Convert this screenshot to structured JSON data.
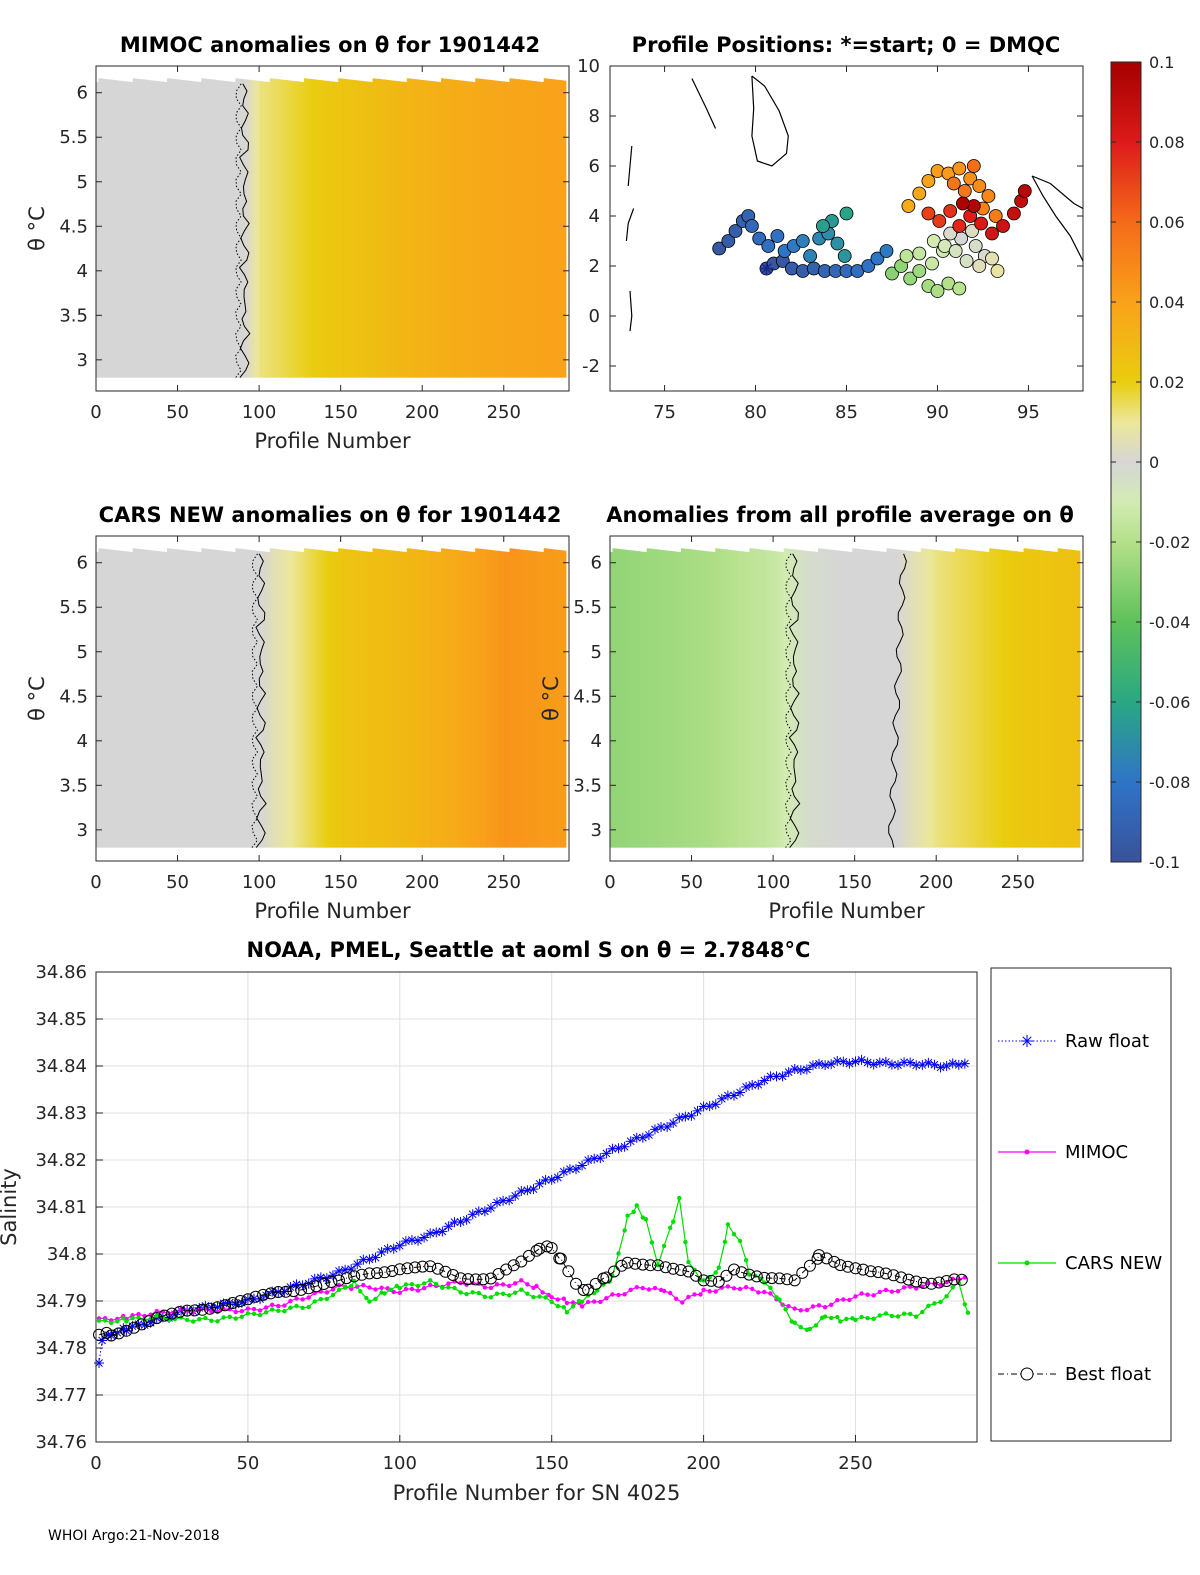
{
  "footer": "WHOI Argo:21-Nov-2018",
  "theta_symbol": "θ",
  "colorbar": {
    "range": [
      -0.1,
      0.1
    ],
    "tick_labels": [
      "0.1",
      "0.08",
      "0.06",
      "0.04",
      "0.02",
      "0",
      "-0.02",
      "-0.04",
      "-0.06",
      "-0.08",
      "-0.1"
    ],
    "tick_values": [
      0.1,
      0.08,
      0.06,
      0.04,
      0.02,
      0,
      -0.02,
      -0.04,
      -0.06,
      -0.08,
      -0.1
    ]
  },
  "chart_data": [
    {
      "id": "mimoc",
      "type": "heatmap",
      "title": "MIMOC anomalies on θ  for 1901442",
      "xlabel": "Profile Number",
      "ylabel": "θ °C",
      "xlim": [
        0,
        290
      ],
      "ylim": [
        2.65,
        6.3
      ],
      "xticks": [
        0,
        50,
        100,
        150,
        200,
        250
      ],
      "yticks": [
        3,
        3.5,
        4,
        4.5,
        5,
        5.5,
        6
      ],
      "ytick_labels": [
        "3",
        "3.5",
        "4",
        "4.5",
        "5",
        "5.5",
        "6"
      ],
      "anomaly_by_profile": [
        [
          0,
          0.0
        ],
        [
          90,
          0.0
        ],
        [
          100,
          0.012
        ],
        [
          140,
          0.022
        ],
        [
          180,
          0.029
        ],
        [
          210,
          0.034
        ],
        [
          250,
          0.038
        ],
        [
          285,
          0.04
        ]
      ]
    },
    {
      "id": "positions",
      "type": "scatter",
      "title": "Profile Positions: *=start; 0 = DMQC",
      "xlim": [
        72,
        98
      ],
      "ylim": [
        -3,
        10
      ],
      "xticks": [
        75,
        80,
        85,
        90,
        95
      ],
      "yticks": [
        -2,
        0,
        2,
        4,
        6,
        8,
        10
      ],
      "start": [
        80.6,
        1.9
      ],
      "track": [
        [
          80.6,
          1.9
        ],
        [
          81.0,
          2.1
        ],
        [
          81.5,
          2.2
        ],
        [
          82.0,
          1.9
        ],
        [
          82.6,
          1.8
        ],
        [
          83.2,
          1.9
        ],
        [
          83.8,
          1.8
        ],
        [
          84.4,
          1.8
        ],
        [
          85.0,
          1.8
        ],
        [
          85.6,
          1.8
        ],
        [
          86.2,
          2.0
        ],
        [
          86.7,
          2.3
        ],
        [
          87.2,
          2.6
        ],
        [
          78.0,
          2.7
        ],
        [
          78.5,
          3.0
        ],
        [
          78.9,
          3.4
        ],
        [
          79.3,
          3.8
        ],
        [
          79.6,
          4.0
        ],
        [
          79.8,
          3.6
        ],
        [
          80.2,
          3.1
        ],
        [
          80.7,
          2.8
        ],
        [
          81.2,
          3.2
        ],
        [
          81.6,
          2.6
        ],
        [
          82.1,
          2.8
        ],
        [
          82.6,
          3.0
        ],
        [
          83.0,
          2.4
        ],
        [
          83.5,
          3.1
        ],
        [
          84.0,
          3.3
        ],
        [
          84.5,
          2.9
        ],
        [
          84.9,
          2.4
        ],
        [
          84.2,
          3.8
        ],
        [
          83.7,
          3.6
        ],
        [
          85.0,
          4.1
        ],
        [
          87.5,
          1.7
        ],
        [
          88.0,
          2.0
        ],
        [
          88.5,
          1.5
        ],
        [
          89.0,
          1.8
        ],
        [
          89.5,
          1.2
        ],
        [
          90.0,
          1.0
        ],
        [
          90.6,
          1.3
        ],
        [
          91.2,
          1.1
        ],
        [
          88.3,
          2.4
        ],
        [
          89.0,
          2.5
        ],
        [
          89.7,
          2.1
        ],
        [
          90.3,
          2.6
        ],
        [
          89.8,
          3.0
        ],
        [
          90.4,
          2.8
        ],
        [
          91.0,
          2.6
        ],
        [
          91.6,
          2.2
        ],
        [
          92.1,
          2.8
        ],
        [
          92.6,
          2.4
        ],
        [
          91.3,
          3.1
        ],
        [
          90.7,
          3.3
        ],
        [
          91.9,
          3.4
        ],
        [
          92.3,
          2.0
        ],
        [
          93.0,
          2.3
        ],
        [
          93.3,
          1.8
        ],
        [
          88.4,
          4.4
        ],
        [
          89.0,
          4.9
        ],
        [
          89.5,
          5.4
        ],
        [
          90.0,
          5.8
        ],
        [
          90.6,
          5.7
        ],
        [
          91.2,
          5.9
        ],
        [
          91.8,
          5.5
        ],
        [
          92.3,
          5.2
        ],
        [
          92.8,
          4.8
        ],
        [
          92.5,
          4.3
        ],
        [
          93.2,
          4.0
        ],
        [
          91.5,
          5.0
        ],
        [
          90.9,
          5.3
        ],
        [
          92.0,
          6.0
        ],
        [
          89.5,
          4.1
        ],
        [
          90.1,
          3.8
        ],
        [
          90.7,
          4.2
        ],
        [
          91.2,
          3.6
        ],
        [
          91.8,
          4.0
        ],
        [
          92.4,
          3.7
        ],
        [
          93.0,
          3.3
        ],
        [
          93.6,
          3.6
        ],
        [
          94.2,
          4.1
        ],
        [
          94.6,
          4.6
        ],
        [
          94.8,
          5.0
        ],
        [
          92.0,
          4.4
        ],
        [
          91.4,
          4.5
        ]
      ]
    },
    {
      "id": "cars",
      "type": "heatmap",
      "title": "CARS NEW anomalies on θ for 1901442",
      "xlabel": "Profile Number",
      "ylabel": "θ °C",
      "xlim": [
        0,
        290
      ],
      "ylim": [
        2.65,
        6.3
      ],
      "xticks": [
        0,
        50,
        100,
        150,
        200,
        250
      ],
      "yticks": [
        3,
        3.5,
        4,
        4.5,
        5,
        5.5,
        6
      ],
      "ytick_labels": [
        "3",
        "3.5",
        "4",
        "4.5",
        "5",
        "5.5",
        "6"
      ],
      "anomaly_by_profile": [
        [
          0,
          0.0
        ],
        [
          100,
          0.0
        ],
        [
          110,
          0.006
        ],
        [
          150,
          0.024
        ],
        [
          190,
          0.03
        ],
        [
          220,
          0.036
        ],
        [
          250,
          0.045
        ],
        [
          285,
          0.042
        ]
      ]
    },
    {
      "id": "allavg",
      "type": "heatmap",
      "title": "Anomalies from all profile average on θ",
      "xlabel": "Profile Number",
      "ylabel": "θ °C",
      "xlim": [
        0,
        290
      ],
      "ylim": [
        2.65,
        6.3
      ],
      "xticks": [
        0,
        50,
        100,
        150,
        200,
        250
      ],
      "yticks": [
        3,
        3.5,
        4,
        4.5,
        5,
        5.5,
        6
      ],
      "ytick_labels": [
        "3",
        "3.5",
        "4",
        "4.5",
        "5",
        "5.5",
        "6"
      ],
      "anomaly_by_profile": [
        [
          0,
          -0.028
        ],
        [
          60,
          -0.022
        ],
        [
          100,
          -0.014
        ],
        [
          120,
          -0.003
        ],
        [
          140,
          0.0
        ],
        [
          175,
          0.0
        ],
        [
          200,
          0.012
        ],
        [
          250,
          0.022
        ],
        [
          285,
          0.026
        ]
      ]
    },
    {
      "id": "salinity",
      "type": "line",
      "title": "NOAA, PMEL, Seattle at aoml S on θ = 2.7848°C",
      "xlabel": "Profile Number for SN 4025",
      "ylabel": "Salinity",
      "xlim": [
        0,
        290
      ],
      "ylim": [
        34.76,
        34.86
      ],
      "xticks": [
        0,
        50,
        100,
        150,
        200,
        250
      ],
      "yticks": [
        34.76,
        34.77,
        34.78,
        34.79,
        34.8,
        34.81,
        34.82,
        34.83,
        34.84,
        34.85,
        34.86
      ],
      "ytick_labels": [
        "34.76",
        "34.77",
        "34.78",
        "34.79",
        "34.8",
        "34.81",
        "34.82",
        "34.83",
        "34.84",
        "34.85",
        "34.86"
      ],
      "grid": true,
      "legend": "outside-right",
      "series": [
        {
          "name": "Raw float",
          "color": "#0000ff",
          "points": [
            [
              1,
              34.7765
            ],
            [
              2,
              34.782
            ],
            [
              5,
              34.783
            ],
            [
              10,
              34.784
            ],
            [
              20,
              34.786
            ],
            [
              30,
              34.788
            ],
            [
              40,
              34.789
            ],
            [
              50,
              34.79
            ],
            [
              60,
              34.792
            ],
            [
              70,
              34.794
            ],
            [
              80,
              34.796
            ],
            [
              90,
              34.799
            ],
            [
              100,
              34.802
            ],
            [
              110,
              34.804
            ],
            [
              120,
              34.807
            ],
            [
              130,
              34.81
            ],
            [
              140,
              34.813
            ],
            [
              150,
              34.816
            ],
            [
              160,
              34.819
            ],
            [
              170,
              34.822
            ],
            [
              180,
              34.825
            ],
            [
              190,
              34.828
            ],
            [
              200,
              34.831
            ],
            [
              210,
              34.834
            ],
            [
              220,
              34.837
            ],
            [
              230,
              34.839
            ],
            [
              240,
              34.8405
            ],
            [
              250,
              34.841
            ],
            [
              260,
              34.8405
            ],
            [
              270,
              34.8405
            ],
            [
              280,
              34.84
            ],
            [
              286,
              34.8405
            ]
          ]
        },
        {
          "name": "MIMOC",
          "color": "#ff00ff",
          "points": [
            [
              1,
              34.786
            ],
            [
              10,
              34.7865
            ],
            [
              20,
              34.7875
            ],
            [
              30,
              34.788
            ],
            [
              40,
              34.788
            ],
            [
              50,
              34.788
            ],
            [
              60,
              34.789
            ],
            [
              70,
              34.791
            ],
            [
              80,
              34.793
            ],
            [
              90,
              34.793
            ],
            [
              100,
              34.792
            ],
            [
              110,
              34.793
            ],
            [
              120,
              34.794
            ],
            [
              130,
              34.793
            ],
            [
              140,
              34.794
            ],
            [
              145,
              34.793
            ],
            [
              150,
              34.791
            ],
            [
              155,
              34.79
            ],
            [
              160,
              34.789
            ],
            [
              170,
              34.791
            ],
            [
              180,
              34.793
            ],
            [
              187,
              34.792
            ],
            [
              193,
              34.79
            ],
            [
              200,
              34.792
            ],
            [
              210,
              34.793
            ],
            [
              220,
              34.792
            ],
            [
              230,
              34.788
            ],
            [
              240,
              34.789
            ],
            [
              250,
              34.791
            ],
            [
              260,
              34.792
            ],
            [
              270,
              34.793
            ],
            [
              280,
              34.794
            ],
            [
              286,
              34.795
            ]
          ]
        },
        {
          "name": "CARS NEW",
          "color": "#00dd00",
          "points": [
            [
              1,
              34.7855
            ],
            [
              10,
              34.786
            ],
            [
              20,
              34.7865
            ],
            [
              30,
              34.786
            ],
            [
              40,
              34.786
            ],
            [
              50,
              34.787
            ],
            [
              60,
              34.788
            ],
            [
              70,
              34.789
            ],
            [
              80,
              34.792
            ],
            [
              85,
              34.794
            ],
            [
              90,
              34.79
            ],
            [
              95,
              34.792
            ],
            [
              100,
              34.793
            ],
            [
              110,
              34.794
            ],
            [
              120,
              34.792
            ],
            [
              130,
              34.791
            ],
            [
              140,
              34.792
            ],
            [
              150,
              34.79
            ],
            [
              155,
              34.788
            ],
            [
              160,
              34.79
            ],
            [
              165,
              34.792
            ],
            [
              170,
              34.795
            ],
            [
              175,
              34.808
            ],
            [
              178,
              34.81
            ],
            [
              181,
              34.807
            ],
            [
              185,
              34.798
            ],
            [
              190,
              34.807
            ],
            [
              192,
              34.8115
            ],
            [
              195,
              34.798
            ],
            [
              200,
              34.794
            ],
            [
              205,
              34.797
            ],
            [
              208,
              34.806
            ],
            [
              212,
              34.803
            ],
            [
              215,
              34.796
            ],
            [
              220,
              34.794
            ],
            [
              225,
              34.79
            ],
            [
              230,
              34.785
            ],
            [
              235,
              34.784
            ],
            [
              240,
              34.787
            ],
            [
              245,
              34.786
            ],
            [
              250,
              34.786
            ],
            [
              260,
              34.787
            ],
            [
              270,
              34.787
            ],
            [
              280,
              34.791
            ],
            [
              284,
              34.794
            ],
            [
              287,
              34.7875
            ]
          ]
        },
        {
          "name": "Best float",
          "color": "#000000",
          "points": [
            [
              1,
              34.7825
            ],
            [
              5,
              34.783
            ],
            [
              10,
              34.784
            ],
            [
              20,
              34.786
            ],
            [
              30,
              34.788
            ],
            [
              40,
              34.789
            ],
            [
              50,
              34.79
            ],
            [
              60,
              34.792
            ],
            [
              70,
              34.793
            ],
            [
              80,
              34.794
            ],
            [
              90,
              34.796
            ],
            [
              100,
              34.797
            ],
            [
              110,
              34.797
            ],
            [
              120,
              34.795
            ],
            [
              130,
              34.795
            ],
            [
              140,
              34.798
            ],
            [
              146,
              34.801
            ],
            [
              150,
              34.8015
            ],
            [
              153,
              34.799
            ],
            [
              158,
              34.794
            ],
            [
              162,
              34.792
            ],
            [
              168,
              34.795
            ],
            [
              175,
              34.798
            ],
            [
              185,
              34.798
            ],
            [
              195,
              34.796
            ],
            [
              200,
              34.794
            ],
            [
              205,
              34.794
            ],
            [
              210,
              34.797
            ],
            [
              220,
              34.795
            ],
            [
              230,
              34.794
            ],
            [
              238,
              34.7995
            ],
            [
              245,
              34.798
            ],
            [
              255,
              34.796
            ],
            [
              265,
              34.795
            ],
            [
              275,
              34.794
            ],
            [
              285,
              34.7945
            ]
          ]
        }
      ]
    }
  ]
}
